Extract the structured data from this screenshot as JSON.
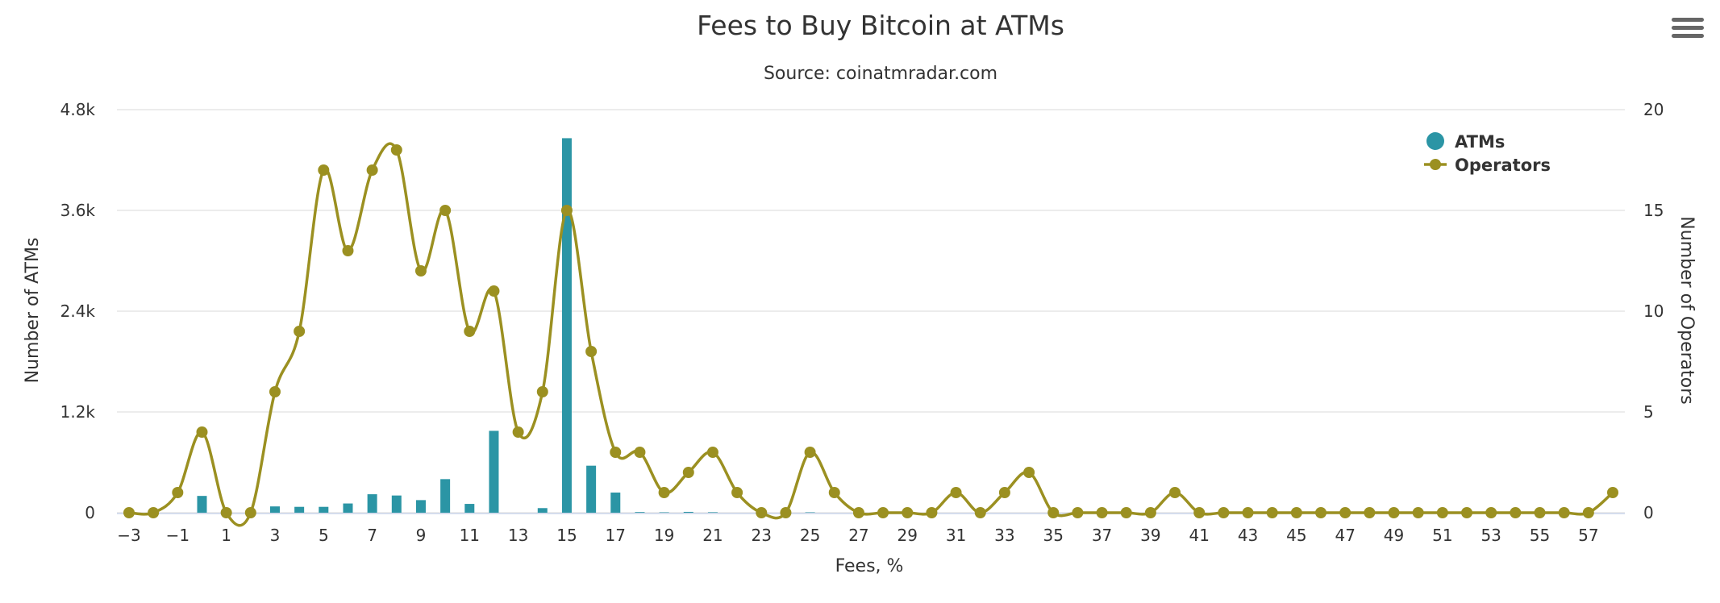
{
  "chart_data": {
    "type": "bar+line",
    "title": "Fees to Buy Bitcoin at ATMs",
    "subtitle": "Source: coinatmradar.com",
    "xlabel": "Fees, %",
    "y_left_label": "Number of ATMs",
    "y_right_label": "Number of Operators",
    "x_range": [
      -3,
      58
    ],
    "x_ticks": [
      -3,
      -1,
      1,
      3,
      5,
      7,
      9,
      11,
      13,
      15,
      17,
      19,
      21,
      23,
      25,
      27,
      29,
      31,
      33,
      35,
      37,
      39,
      41,
      43,
      45,
      47,
      49,
      51,
      53,
      55,
      57
    ],
    "y_left_range": [
      0,
      4800
    ],
    "y_left_ticks": [
      {
        "value": 0,
        "label": "0"
      },
      {
        "value": 1200,
        "label": "1.2k"
      },
      {
        "value": 2400,
        "label": "2.4k"
      },
      {
        "value": 3600,
        "label": "3.6k"
      },
      {
        "value": 4800,
        "label": "4.8k"
      }
    ],
    "y_right_range": [
      0,
      20
    ],
    "y_right_ticks": [
      {
        "value": 0,
        "label": "0"
      },
      {
        "value": 5,
        "label": "5"
      },
      {
        "value": 10,
        "label": "10"
      },
      {
        "value": 15,
        "label": "15"
      },
      {
        "value": 20,
        "label": "20"
      }
    ],
    "grid": true,
    "legend_position": "top-right",
    "series": [
      {
        "name": "ATMs",
        "type": "bar",
        "axis": "left",
        "color": "#2b95a5",
        "points": [
          {
            "x": 0,
            "y": 200
          },
          {
            "x": 3,
            "y": 75
          },
          {
            "x": 4,
            "y": 70
          },
          {
            "x": 5,
            "y": 70
          },
          {
            "x": 6,
            "y": 110
          },
          {
            "x": 7,
            "y": 220
          },
          {
            "x": 8,
            "y": 205
          },
          {
            "x": 9,
            "y": 150
          },
          {
            "x": 10,
            "y": 400
          },
          {
            "x": 11,
            "y": 105
          },
          {
            "x": 12,
            "y": 975
          },
          {
            "x": 14,
            "y": 55
          },
          {
            "x": 15,
            "y": 4460
          },
          {
            "x": 16,
            "y": 560
          },
          {
            "x": 17,
            "y": 240
          },
          {
            "x": 18,
            "y": 8
          },
          {
            "x": 19,
            "y": 5
          },
          {
            "x": 20,
            "y": 10
          },
          {
            "x": 21,
            "y": 6
          },
          {
            "x": 25,
            "y": 5
          }
        ]
      },
      {
        "name": "Operators",
        "type": "spline",
        "axis": "right",
        "color": "#9b9021",
        "points": [
          {
            "x": -3,
            "y": 0
          },
          {
            "x": -2,
            "y": 0
          },
          {
            "x": -1,
            "y": 1
          },
          {
            "x": 0,
            "y": 4
          },
          {
            "x": 1,
            "y": 0
          },
          {
            "x": 2,
            "y": 0
          },
          {
            "x": 3,
            "y": 6
          },
          {
            "x": 4,
            "y": 9
          },
          {
            "x": 5,
            "y": 17
          },
          {
            "x": 6,
            "y": 13
          },
          {
            "x": 7,
            "y": 17
          },
          {
            "x": 8,
            "y": 18
          },
          {
            "x": 9,
            "y": 12
          },
          {
            "x": 10,
            "y": 15
          },
          {
            "x": 11,
            "y": 9
          },
          {
            "x": 12,
            "y": 11
          },
          {
            "x": 13,
            "y": 4
          },
          {
            "x": 14,
            "y": 6
          },
          {
            "x": 15,
            "y": 15
          },
          {
            "x": 16,
            "y": 8
          },
          {
            "x": 17,
            "y": 3
          },
          {
            "x": 18,
            "y": 3
          },
          {
            "x": 19,
            "y": 1
          },
          {
            "x": 20,
            "y": 2
          },
          {
            "x": 21,
            "y": 3
          },
          {
            "x": 22,
            "y": 1
          },
          {
            "x": 23,
            "y": 0
          },
          {
            "x": 24,
            "y": 0
          },
          {
            "x": 25,
            "y": 3
          },
          {
            "x": 26,
            "y": 1
          },
          {
            "x": 27,
            "y": 0
          },
          {
            "x": 28,
            "y": 0
          },
          {
            "x": 29,
            "y": 0
          },
          {
            "x": 30,
            "y": 0
          },
          {
            "x": 31,
            "y": 1
          },
          {
            "x": 32,
            "y": 0
          },
          {
            "x": 33,
            "y": 1
          },
          {
            "x": 34,
            "y": 2
          },
          {
            "x": 35,
            "y": 0
          },
          {
            "x": 36,
            "y": 0
          },
          {
            "x": 37,
            "y": 0
          },
          {
            "x": 38,
            "y": 0
          },
          {
            "x": 39,
            "y": 0
          },
          {
            "x": 40,
            "y": 1
          },
          {
            "x": 41,
            "y": 0
          },
          {
            "x": 42,
            "y": 0
          },
          {
            "x": 43,
            "y": 0
          },
          {
            "x": 44,
            "y": 0
          },
          {
            "x": 45,
            "y": 0
          },
          {
            "x": 46,
            "y": 0
          },
          {
            "x": 47,
            "y": 0
          },
          {
            "x": 48,
            "y": 0
          },
          {
            "x": 49,
            "y": 0
          },
          {
            "x": 50,
            "y": 0
          },
          {
            "x": 51,
            "y": 0
          },
          {
            "x": 52,
            "y": 0
          },
          {
            "x": 53,
            "y": 0
          },
          {
            "x": 54,
            "y": 0
          },
          {
            "x": 55,
            "y": 0
          },
          {
            "x": 56,
            "y": 0
          },
          {
            "x": 57,
            "y": 0
          },
          {
            "x": 58,
            "y": 1
          }
        ]
      }
    ]
  },
  "ui": {
    "menu_icon": "hamburger-menu-icon"
  }
}
